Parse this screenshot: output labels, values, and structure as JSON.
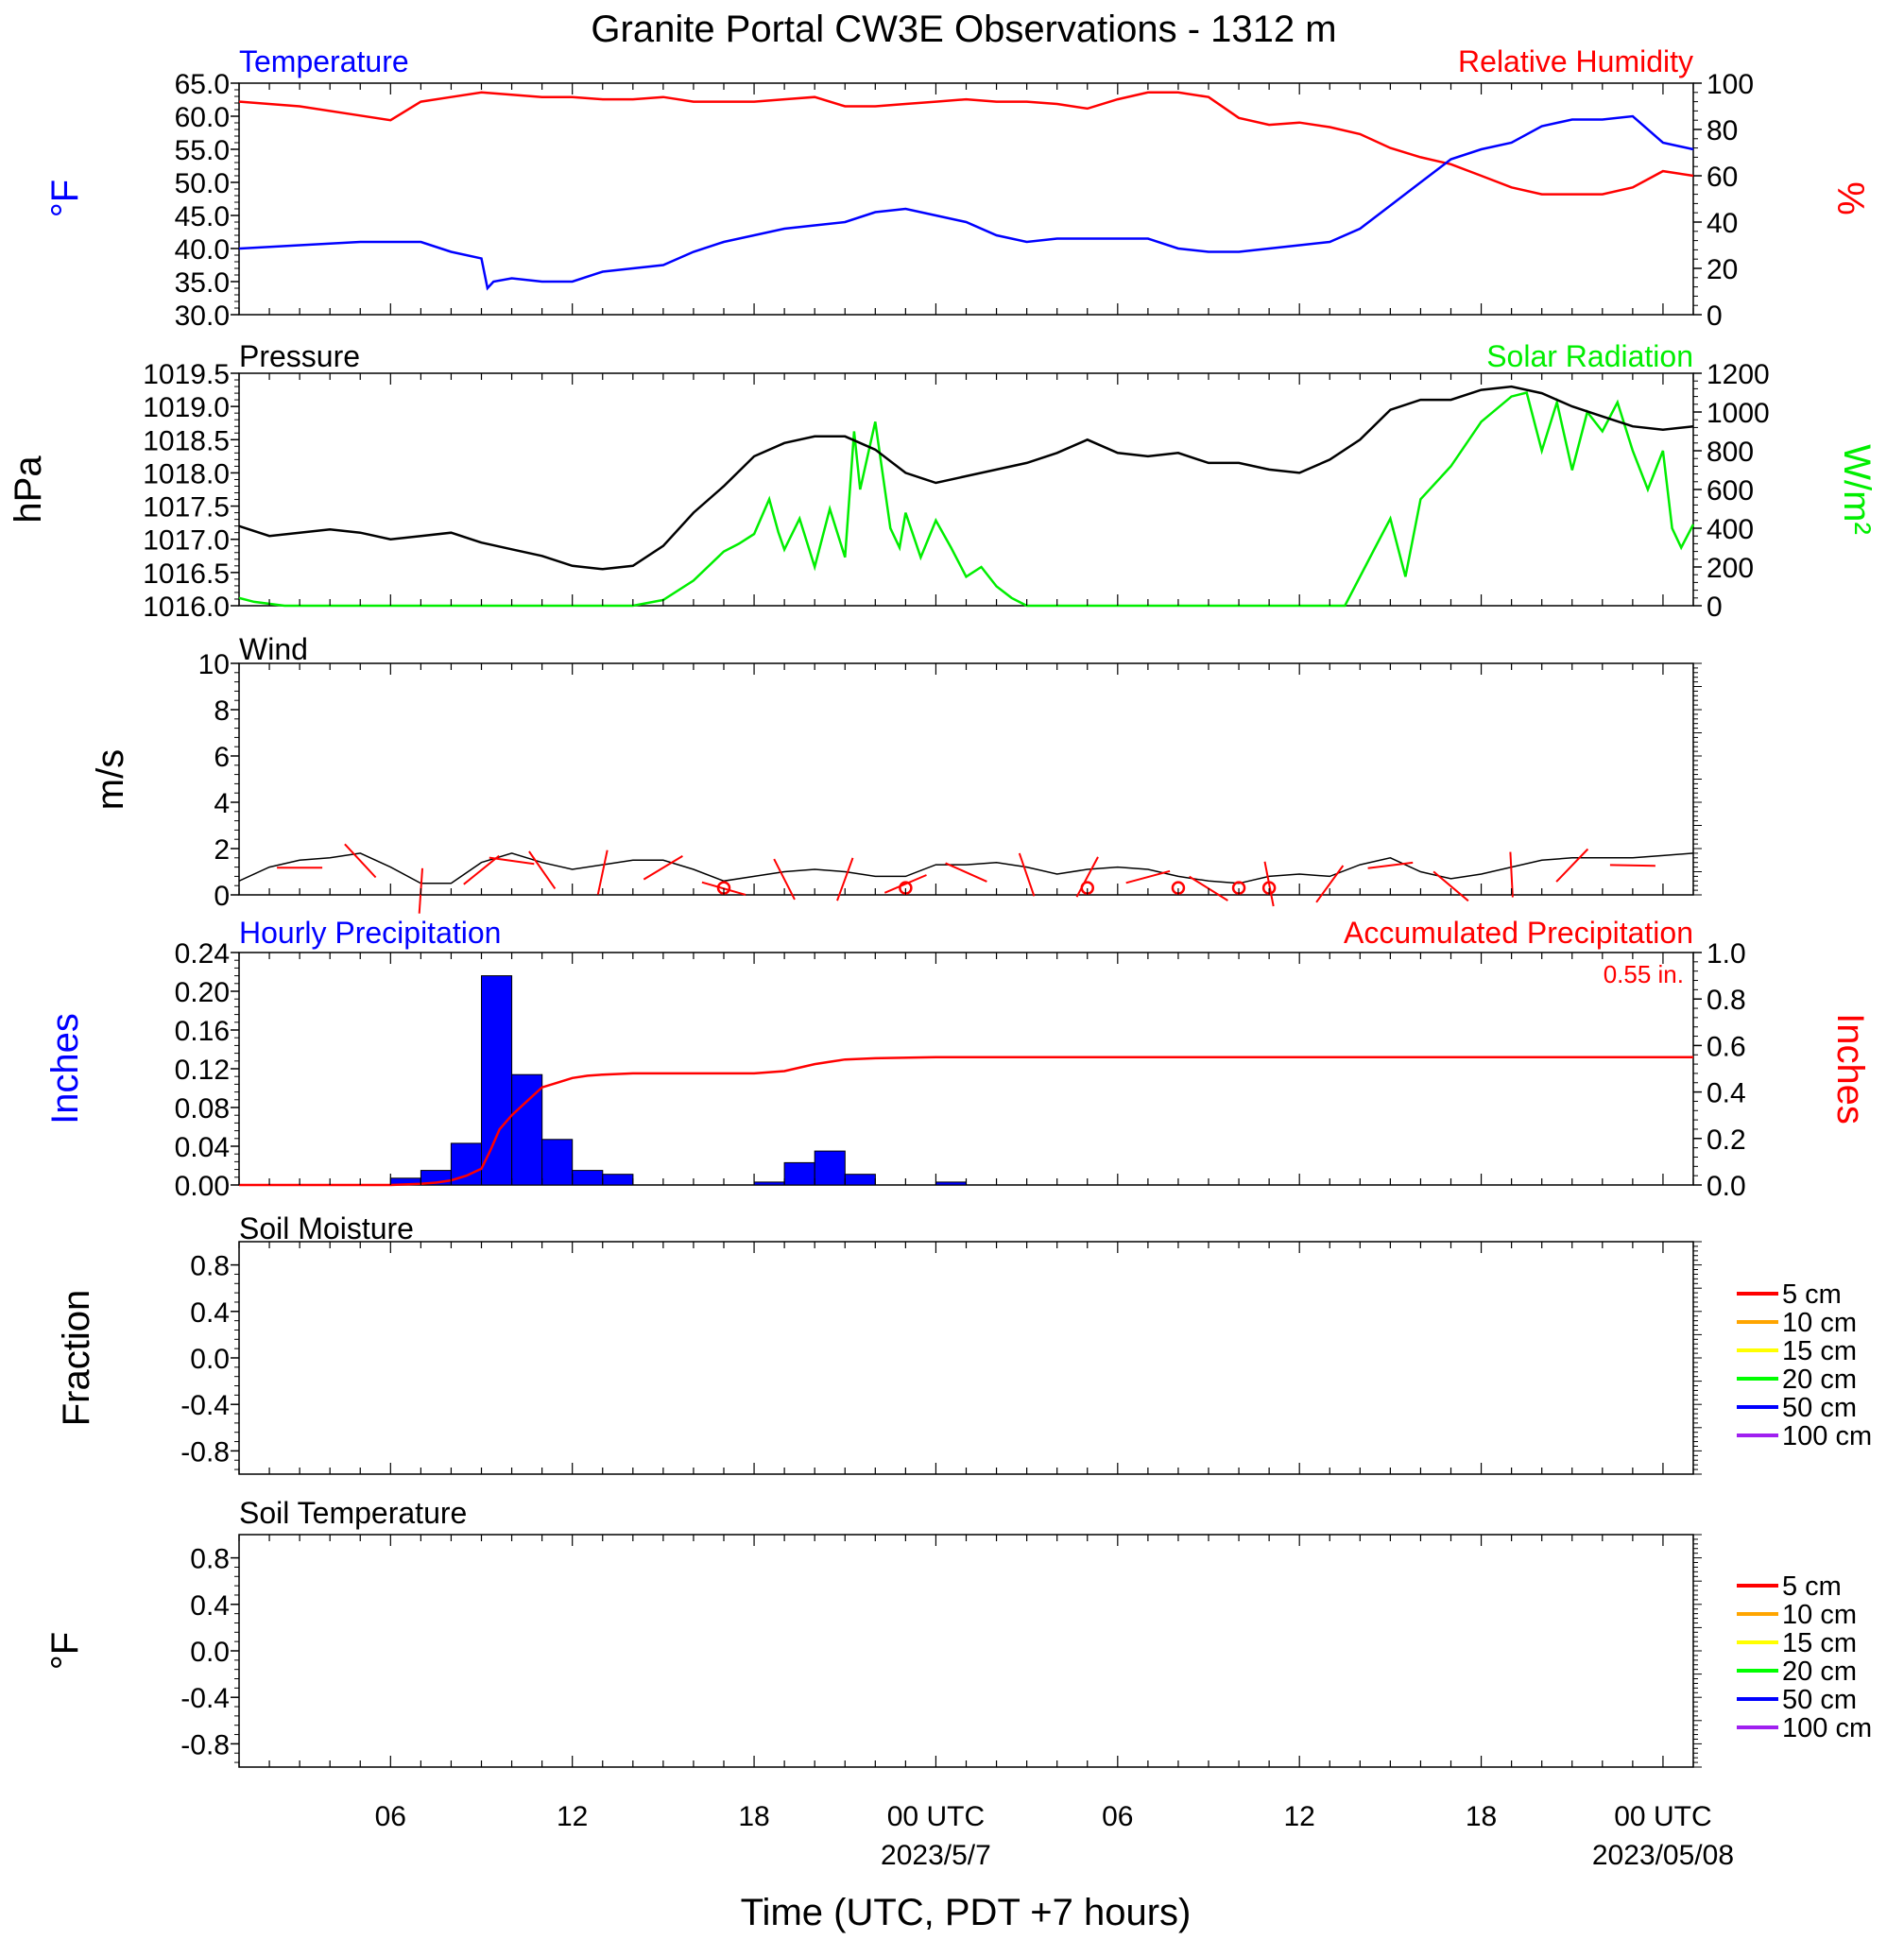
{
  "title": "Granite Portal CW3E Observations - 1312 m",
  "time_axis": {
    "xlabel": "Time (UTC, PDT +7 hours)",
    "ticks": [
      {
        "h": 6,
        "label": "06"
      },
      {
        "h": 12,
        "label": "12"
      },
      {
        "h": 18,
        "label": "18"
      },
      {
        "h": 24,
        "label": "00 UTC"
      },
      {
        "h": 30,
        "label": "06"
      },
      {
        "h": 36,
        "label": "12"
      },
      {
        "h": 42,
        "label": "18"
      },
      {
        "h": 48,
        "label": "00 UTC"
      }
    ],
    "date_labels": [
      {
        "h": 24,
        "label": "2023/5/7"
      },
      {
        "h": 48,
        "label": "2023/05/08"
      }
    ],
    "range_hours": [
      1,
      49
    ]
  },
  "panels": {
    "temp": {
      "left_title": "Temperature",
      "right_title": "Relative Humidity",
      "left_unit": "°F",
      "right_unit": "%",
      "left_color": "#0000ff",
      "right_color": "#ff0000"
    },
    "pres": {
      "left_title": "Pressure",
      "right_title": "Solar Radiation",
      "left_unit": "hPa",
      "right_unit": "W/m²",
      "left_color": "#000000",
      "right_color": "#00ee00"
    },
    "wind": {
      "left_title": "Wind",
      "left_unit": "m/s",
      "barb_color": "#ff0000"
    },
    "precip": {
      "left_title": "Hourly Precipitation",
      "right_title": "Accumulated Precipitation",
      "left_unit": "Inches",
      "right_unit": "Inches",
      "total": "0.55 in.",
      "left_color": "#0000ff",
      "right_color": "#ff0000"
    },
    "soilm": {
      "left_title": "Soil Moisture",
      "left_unit": "Fraction"
    },
    "soilt": {
      "left_title": "Soil Temperature",
      "left_unit": "°F"
    }
  },
  "legend": [
    {
      "label": "5 cm",
      "color": "#ff0000"
    },
    {
      "label": "10 cm",
      "color": "#ffa500"
    },
    {
      "label": "15 cm",
      "color": "#ffff00"
    },
    {
      "label": "20 cm",
      "color": "#00ff00"
    },
    {
      "label": "50 cm",
      "color": "#0000ff"
    },
    {
      "label": "100 cm",
      "color": "#a020f0"
    }
  ],
  "chart_data": [
    {
      "type": "line",
      "title": "Temperature",
      "ylabel": "°F",
      "ylim": [
        30,
        65
      ],
      "yticks": [
        "65.0",
        "60.0",
        "55.0",
        "50.0",
        "45.0",
        "40.0",
        "35.0",
        "30.0"
      ],
      "series": [
        {
          "name": "Temperature",
          "color": "#0000ff",
          "x": [
            1,
            3,
            5,
            6,
            7,
            8,
            9,
            9.2,
            9.4,
            10,
            11,
            12,
            13,
            14,
            15,
            16,
            17,
            18,
            19,
            20,
            21,
            22,
            23,
            24,
            25,
            26,
            27,
            28,
            29,
            30,
            31,
            32,
            33,
            34,
            35,
            36,
            37,
            38,
            39,
            40,
            41,
            42,
            43,
            44,
            45,
            46,
            47,
            48,
            49
          ],
          "y": [
            40,
            40.5,
            41,
            41,
            41,
            39.5,
            38.5,
            34,
            35,
            35.5,
            35,
            35,
            36.5,
            37,
            37.5,
            39.5,
            41,
            42,
            43,
            43.5,
            44,
            45.5,
            46,
            45,
            44,
            42,
            41,
            41.5,
            41.5,
            41.5,
            41.5,
            40,
            39.5,
            39.5,
            40,
            40.5,
            41,
            43,
            46.5,
            50,
            53.5,
            55,
            56,
            58.5,
            59.5,
            59.5,
            60,
            56,
            55
          ]
        }
      ]
    },
    {
      "type": "line",
      "title": "Relative Humidity",
      "ylabel": "%",
      "ylim": [
        0,
        100
      ],
      "yticks": [
        "100",
        "80",
        "60",
        "40",
        "20",
        "0"
      ],
      "series": [
        {
          "name": "Relative Humidity",
          "color": "#ff0000",
          "x": [
            1,
            3,
            5,
            6,
            7,
            8,
            9,
            10,
            11,
            12,
            13,
            14,
            15,
            16,
            17,
            18,
            19,
            20,
            21,
            22,
            23,
            24,
            25,
            26,
            27,
            28,
            29,
            30,
            31,
            32,
            33,
            34,
            35,
            36,
            37,
            38,
            39,
            40,
            41,
            42,
            43,
            44,
            45,
            46,
            47,
            48,
            49
          ],
          "y": [
            92,
            90,
            86,
            84,
            92,
            94,
            96,
            95,
            94,
            94,
            93,
            93,
            94,
            92,
            92,
            92,
            93,
            94,
            90,
            90,
            91,
            92,
            93,
            92,
            92,
            91,
            89,
            93,
            96,
            96,
            94,
            85,
            82,
            83,
            81,
            78,
            72,
            68,
            65,
            60,
            55,
            52,
            52,
            52,
            55,
            62,
            60
          ]
        }
      ]
    },
    {
      "type": "line",
      "title": "Pressure",
      "ylabel": "hPa",
      "ylim": [
        1016.0,
        1019.5
      ],
      "yticks": [
        "1019.5",
        "1019.0",
        "1018.5",
        "1018.0",
        "1017.5",
        "1017.0",
        "1016.5",
        "1016.0"
      ],
      "series": [
        {
          "name": "Pressure",
          "color": "#000000",
          "x": [
            1,
            2,
            3,
            4,
            5,
            6,
            7,
            8,
            9,
            10,
            11,
            12,
            13,
            14,
            15,
            16,
            17,
            18,
            19,
            20,
            21,
            22,
            23,
            24,
            25,
            26,
            27,
            28,
            29,
            30,
            31,
            32,
            33,
            34,
            35,
            36,
            37,
            38,
            39,
            40,
            41,
            42,
            43,
            44,
            45,
            46,
            47,
            48,
            49
          ],
          "y": [
            1017.2,
            1017.05,
            1017.1,
            1017.15,
            1017.1,
            1017.0,
            1017.05,
            1017.1,
            1016.95,
            1016.85,
            1016.75,
            1016.6,
            1016.55,
            1016.6,
            1016.9,
            1017.4,
            1017.8,
            1018.25,
            1018.45,
            1018.55,
            1018.55,
            1018.35,
            1018.0,
            1017.85,
            1017.95,
            1018.05,
            1018.15,
            1018.3,
            1018.5,
            1018.3,
            1018.25,
            1018.3,
            1018.15,
            1018.15,
            1018.05,
            1018.0,
            1018.2,
            1018.5,
            1018.95,
            1019.1,
            1019.1,
            1019.25,
            1019.3,
            1019.2,
            1019.0,
            1018.85,
            1018.7,
            1018.65,
            1018.7
          ]
        }
      ]
    },
    {
      "type": "line",
      "title": "Solar Radiation",
      "ylabel": "W/m²",
      "ylim": [
        0,
        1200
      ],
      "yticks": [
        "1200",
        "1000",
        "800",
        "600",
        "400",
        "200",
        "0"
      ],
      "series": [
        {
          "name": "Solar Radiation",
          "color": "#00ee00",
          "x": [
            1,
            1.5,
            2.5,
            5,
            10,
            14,
            15,
            16,
            17,
            17.5,
            18,
            18.5,
            18.8,
            19,
            19.5,
            20,
            20.5,
            21,
            21.3,
            21.5,
            22,
            22.5,
            22.8,
            23,
            23.5,
            24,
            24.5,
            25,
            25.5,
            26,
            26.5,
            27,
            30,
            35,
            37.5,
            38.5,
            39,
            39.5,
            40,
            41,
            42,
            43,
            43.5,
            44,
            44.5,
            45,
            45.5,
            46,
            46.5,
            47,
            47.5,
            48,
            48.3,
            48.6,
            49
          ],
          "y": [
            40,
            20,
            0,
            0,
            0,
            0,
            30,
            130,
            280,
            320,
            370,
            550,
            380,
            290,
            450,
            200,
            500,
            250,
            900,
            600,
            950,
            400,
            300,
            480,
            250,
            440,
            300,
            150,
            200,
            100,
            40,
            0,
            0,
            0,
            0,
            300,
            450,
            150,
            550,
            720,
            950,
            1080,
            1100,
            800,
            1050,
            700,
            1000,
            900,
            1050,
            800,
            600,
            800,
            400,
            300,
            420
          ]
        }
      ]
    },
    {
      "type": "line",
      "title": "Wind",
      "ylabel": "m/s",
      "ylim": [
        0,
        10
      ],
      "yticks": [
        "10",
        "8",
        "6",
        "4",
        "2",
        "0"
      ],
      "series": [
        {
          "name": "Wind",
          "color": "#000000",
          "x": [
            1,
            2,
            3,
            4,
            5,
            6,
            7,
            8,
            9,
            10,
            11,
            12,
            13,
            14,
            15,
            16,
            17,
            18,
            19,
            20,
            21,
            22,
            23,
            24,
            25,
            26,
            27,
            28,
            29,
            30,
            31,
            32,
            33,
            34,
            35,
            36,
            37,
            38,
            39,
            40,
            41,
            42,
            43,
            44,
            45,
            46,
            47,
            48,
            49
          ],
          "y": [
            0.6,
            1.2,
            1.5,
            1.6,
            1.8,
            1.2,
            0.5,
            0.5,
            1.4,
            1.8,
            1.4,
            1.1,
            1.3,
            1.5,
            1.5,
            1.1,
            0.6,
            0.8,
            1.0,
            1.1,
            1.0,
            0.8,
            0.8,
            1.3,
            1.3,
            1.4,
            1.2,
            0.9,
            1.1,
            1.2,
            1.1,
            0.8,
            0.6,
            0.5,
            0.8,
            0.9,
            0.8,
            1.3,
            1.6,
            1.0,
            0.7,
            0.9,
            1.2,
            1.5,
            1.6,
            1.6,
            1.6,
            1.7,
            1.8
          ]
        }
      ],
      "barbs_h": [
        3,
        5,
        7,
        9,
        10,
        11,
        13,
        15,
        17,
        19,
        21,
        23,
        25,
        27,
        29,
        31,
        33,
        35,
        37,
        39,
        41,
        43,
        45,
        47
      ],
      "calm_h": [
        17,
        23,
        29,
        32,
        34,
        35
      ]
    },
    {
      "type": "bar",
      "title": "Hourly Precipitation",
      "ylabel": "Inches",
      "ylim": [
        0,
        0.24
      ],
      "yticks": [
        "0.24",
        "0.20",
        "0.16",
        "0.12",
        "0.08",
        "0.04",
        "0.00"
      ],
      "series": [
        {
          "name": "Hourly Precipitation",
          "color": "#0000ff",
          "x": [
            6,
            7,
            8,
            9,
            10,
            11,
            12,
            13,
            18,
            19,
            20,
            21,
            24
          ],
          "y": [
            0.007,
            0.015,
            0.043,
            0.216,
            0.114,
            0.047,
            0.015,
            0.011,
            0.003,
            0.023,
            0.035,
            0.011,
            0.003
          ]
        }
      ]
    },
    {
      "type": "line",
      "title": "Accumulated Precipitation",
      "ylabel": "Inches",
      "ylim": [
        0,
        1.0
      ],
      "yticks": [
        "1.0",
        "0.8",
        "0.6",
        "0.4",
        "0.2",
        "0.0"
      ],
      "series": [
        {
          "name": "Accumulated Precipitation",
          "color": "#ff0000",
          "x": [
            1,
            5,
            6,
            7,
            7.5,
            8,
            8.5,
            9,
            9.3,
            9.6,
            10,
            10.5,
            11,
            11.5,
            12,
            12.5,
            13,
            14,
            18,
            19,
            20,
            20.5,
            21,
            22,
            24,
            25,
            49
          ],
          "y": [
            0,
            0,
            0,
            0.005,
            0.01,
            0.02,
            0.04,
            0.07,
            0.15,
            0.24,
            0.3,
            0.36,
            0.42,
            0.44,
            0.46,
            0.47,
            0.475,
            0.48,
            0.48,
            0.49,
            0.52,
            0.53,
            0.54,
            0.545,
            0.55,
            0.55,
            0.55
          ]
        }
      ]
    },
    {
      "type": "line",
      "title": "Soil Moisture",
      "ylabel": "Fraction",
      "ylim": [
        -1.0,
        1.0
      ],
      "yticks": [
        "0.8",
        "0.4",
        "0.0",
        "-0.4",
        "-0.8"
      ],
      "series": []
    },
    {
      "type": "line",
      "title": "Soil Temperature",
      "ylabel": "°F",
      "ylim": [
        -1.0,
        1.0
      ],
      "yticks": [
        "0.8",
        "0.4",
        "0.0",
        "-0.4",
        "-0.8"
      ],
      "series": []
    }
  ]
}
